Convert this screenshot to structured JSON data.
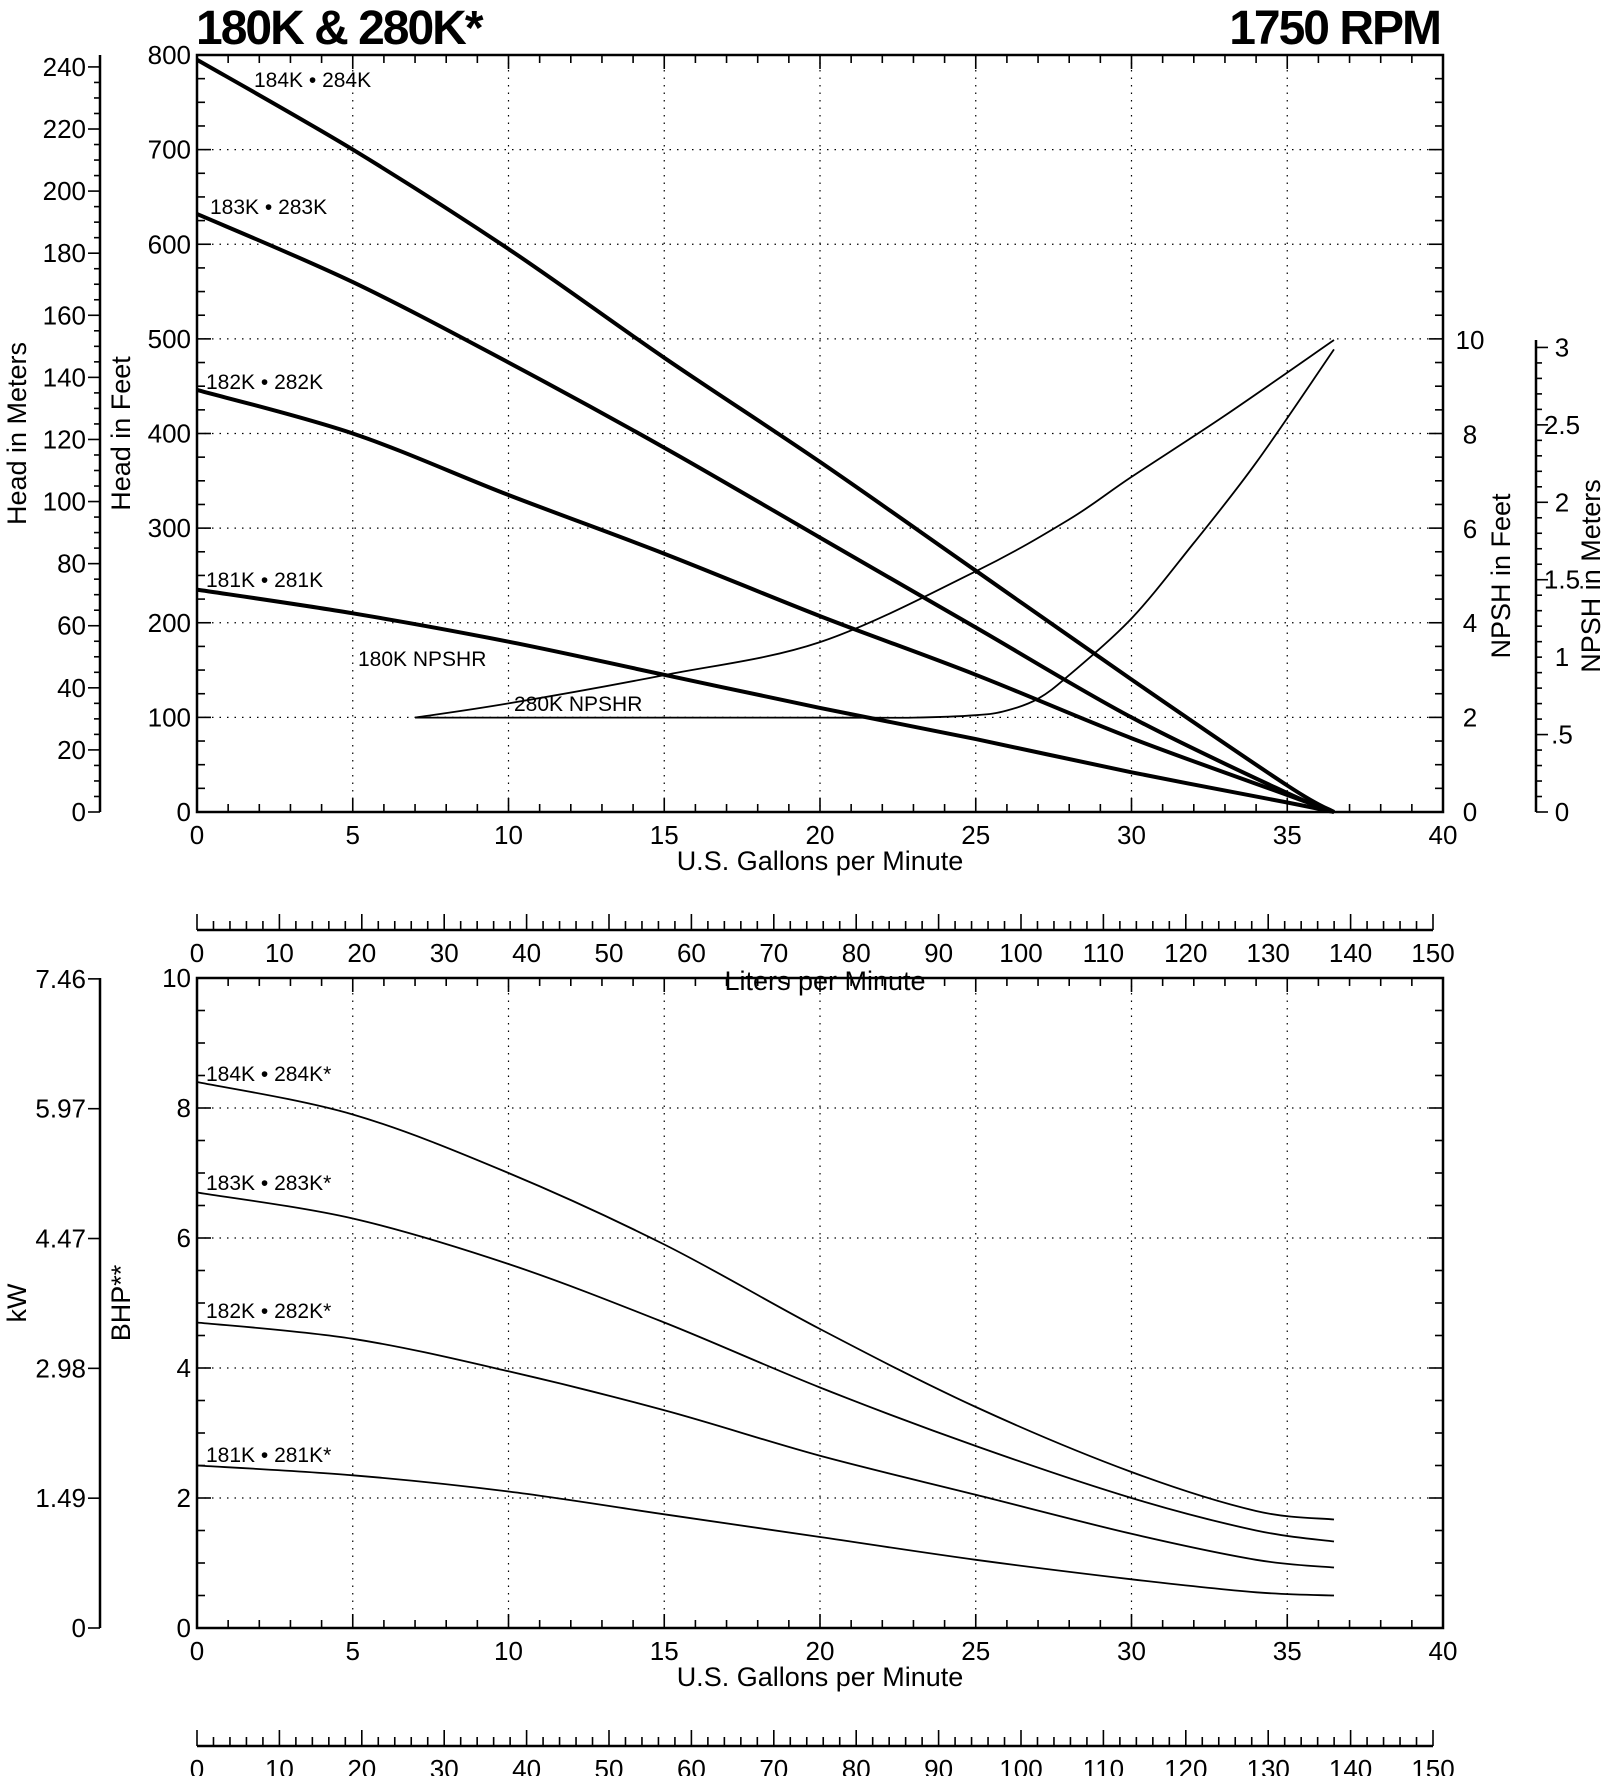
{
  "header": {
    "title": "180K & 280K*",
    "speed": "1750 RPM"
  },
  "chart_data": [
    {
      "type": "line",
      "name": "head-npsh",
      "xlabel": "U.S. Gallons per Minute",
      "xlim": [
        0,
        40
      ],
      "xticks": [
        "0",
        "5",
        "10",
        "15",
        "20",
        "25",
        "30",
        "35",
        "40"
      ],
      "secondary_x": {
        "label": "Liters per Minute",
        "lim": [
          0,
          151.4
        ],
        "ticks": [
          "0",
          "10",
          "20",
          "30",
          "40",
          "50",
          "60",
          "70",
          "80",
          "90",
          "100",
          "110",
          "120",
          "130",
          "140",
          "150"
        ]
      },
      "ylabel": "Head in Feet",
      "ylim": [
        0,
        800
      ],
      "yticks": [
        "0",
        "100",
        "200",
        "300",
        "400",
        "500",
        "600",
        "700",
        "800"
      ],
      "meters_axis": {
        "label": "Head in Meters",
        "ticks": [
          "0",
          "20",
          "40",
          "60",
          "80",
          "100",
          "120",
          "140",
          "160",
          "180",
          "200",
          "220",
          "240"
        ]
      },
      "npsh_feet_axis": {
        "label": "NPSH in Feet",
        "ylim": [
          0,
          10
        ],
        "ticks": [
          "0",
          "2",
          "4",
          "6",
          "8",
          "10"
        ]
      },
      "npsh_meters_axis": {
        "label": "NPSH in Meters",
        "ticks": [
          "0",
          ".5",
          "1",
          "1.5",
          "2",
          "2.5",
          "3"
        ]
      },
      "series": [
        {
          "name": "184K • 284K",
          "axis": "head",
          "x": [
            0,
            5,
            10,
            15,
            20,
            25,
            30,
            35,
            36.5
          ],
          "y": [
            795,
            700,
            595,
            480,
            370,
            255,
            140,
            28,
            0
          ]
        },
        {
          "name": "183K • 283K",
          "axis": "head",
          "x": [
            0,
            5,
            10,
            15,
            20,
            25,
            30,
            35,
            36.5
          ],
          "y": [
            632,
            560,
            475,
            385,
            290,
            195,
            100,
            20,
            0
          ]
        },
        {
          "name": "182K • 282K",
          "axis": "head",
          "x": [
            0,
            5,
            10,
            15,
            20,
            25,
            30,
            35,
            36.5
          ],
          "y": [
            446,
            400,
            335,
            273,
            207,
            145,
            78,
            18,
            0
          ]
        },
        {
          "name": "181K • 281K",
          "axis": "head",
          "x": [
            0,
            5,
            10,
            15,
            20,
            25,
            30,
            35,
            36.5
          ],
          "y": [
            235,
            210,
            180,
            145,
            110,
            77,
            42,
            10,
            0
          ]
        },
        {
          "name": "180K NPSHR",
          "axis": "npsh",
          "x": [
            7,
            10,
            15,
            20,
            25,
            28,
            30,
            33,
            36.5
          ],
          "y": [
            2,
            2.3,
            2.9,
            3.6,
            5.1,
            6.2,
            7.1,
            8.4,
            10
          ]
        },
        {
          "name": "280K NPSHR",
          "axis": "npsh",
          "x": [
            7,
            10,
            15,
            20,
            23,
            25,
            26,
            27,
            28,
            30,
            32,
            34,
            36.5
          ],
          "y": [
            2,
            2,
            2,
            2,
            2,
            2.05,
            2.15,
            2.4,
            2.9,
            4.1,
            5.7,
            7.4,
            9.8
          ]
        }
      ]
    },
    {
      "type": "line",
      "name": "power",
      "xlabel": "U.S. Gallons per Minute",
      "xlim": [
        0,
        40
      ],
      "xticks": [
        "0",
        "5",
        "10",
        "15",
        "20",
        "25",
        "30",
        "35",
        "40"
      ],
      "secondary_x": {
        "label": "Liters per Minute",
        "lim": [
          0,
          151.4
        ],
        "ticks": [
          "0",
          "10",
          "20",
          "30",
          "40",
          "50",
          "60",
          "70",
          "80",
          "90",
          "100",
          "110",
          "120",
          "130",
          "140",
          "150"
        ]
      },
      "ylabel": "BHP**",
      "ylim": [
        0,
        10
      ],
      "yticks": [
        "0",
        "2",
        "4",
        "6",
        "8",
        "10"
      ],
      "kw_axis": {
        "label": "kW",
        "ticks": [
          "0",
          "1.49",
          "2.98",
          "4.47",
          "5.97",
          "7.46"
        ]
      },
      "series": [
        {
          "name": "184K • 284K*",
          "x": [
            0,
            5,
            10,
            15,
            20,
            25,
            30,
            34,
            36.5
          ],
          "y": [
            8.4,
            7.9,
            7.0,
            5.9,
            4.6,
            3.4,
            2.4,
            1.8,
            1.67
          ]
        },
        {
          "name": "183K • 283K*",
          "x": [
            0,
            5,
            10,
            15,
            20,
            25,
            30,
            34,
            36.5
          ],
          "y": [
            6.7,
            6.3,
            5.6,
            4.7,
            3.7,
            2.8,
            2.0,
            1.5,
            1.33
          ]
        },
        {
          "name": "182K • 282K*",
          "x": [
            0,
            5,
            10,
            15,
            20,
            25,
            30,
            34,
            36.5
          ],
          "y": [
            4.7,
            4.45,
            3.95,
            3.35,
            2.65,
            2.05,
            1.45,
            1.05,
            0.93
          ]
        },
        {
          "name": "181K • 281K*",
          "x": [
            0,
            5,
            10,
            15,
            20,
            25,
            30,
            34,
            36.5
          ],
          "y": [
            2.5,
            2.35,
            2.1,
            1.75,
            1.4,
            1.05,
            0.75,
            0.55,
            0.5
          ]
        }
      ]
    }
  ]
}
